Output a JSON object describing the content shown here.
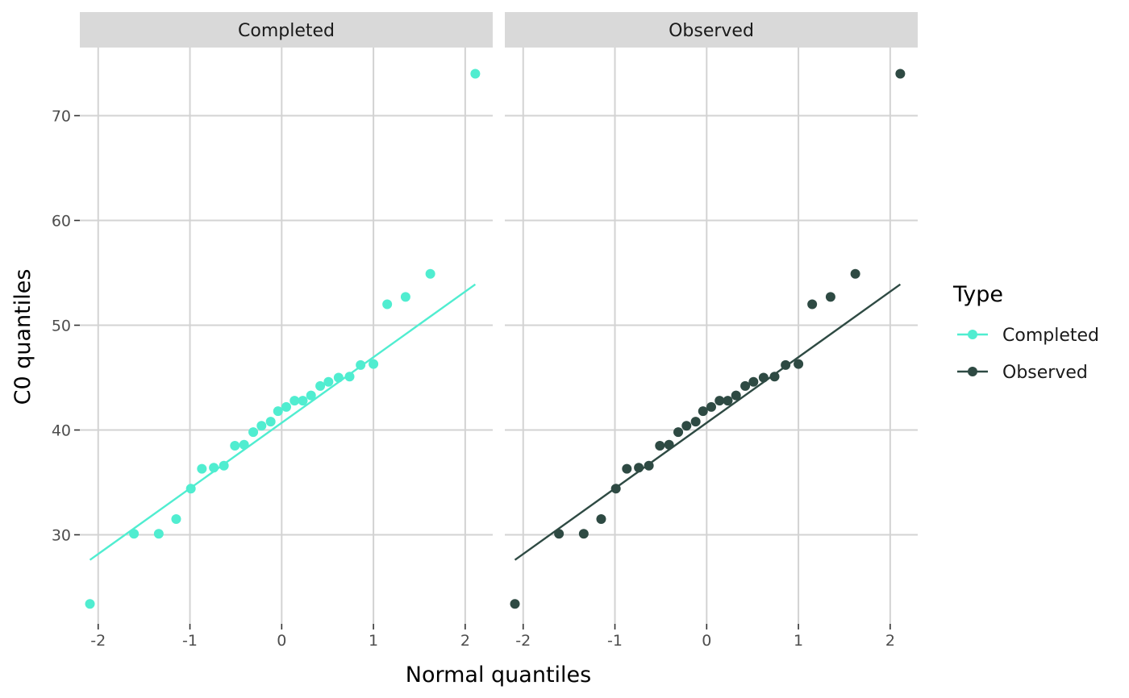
{
  "chart_data": {
    "type": "scatter",
    "subtype": "qq-plot",
    "facets": [
      "Completed",
      "Observed"
    ],
    "xlabel": "Normal quantiles",
    "ylabel": "C0 quantiles",
    "xlim": [
      -2.2,
      2.3
    ],
    "ylim": [
      21.5,
      76.5
    ],
    "x_ticks": [
      -2,
      -1,
      0,
      1,
      2
    ],
    "x_tick_labels": [
      "-2",
      "-1",
      "0",
      "1",
      "2"
    ],
    "y_ticks": [
      30,
      40,
      50,
      60,
      70
    ],
    "y_tick_labels": [
      "30",
      "40",
      "50",
      "60",
      "70"
    ],
    "grid": true,
    "legend": {
      "title": "Type",
      "position": "right",
      "items": [
        {
          "label": "Completed",
          "color": "#50EDD0"
        },
        {
          "label": "Observed",
          "color": "#2E4A43"
        }
      ]
    },
    "series": [
      {
        "name": "Completed",
        "color": "#50EDD0",
        "facet": "Completed",
        "points": [
          [
            -2.09,
            23.4
          ],
          [
            -1.61,
            30.1
          ],
          [
            -1.34,
            30.1
          ],
          [
            -1.15,
            31.5
          ],
          [
            -0.99,
            34.4
          ],
          [
            -0.87,
            36.3
          ],
          [
            -0.74,
            36.4
          ],
          [
            -0.63,
            36.6
          ],
          [
            -0.51,
            38.5
          ],
          [
            -0.41,
            38.6
          ],
          [
            -0.31,
            39.8
          ],
          [
            -0.22,
            40.4
          ],
          [
            -0.12,
            40.8
          ],
          [
            -0.04,
            41.8
          ],
          [
            0.05,
            42.2
          ],
          [
            0.14,
            42.8
          ],
          [
            0.23,
            42.8
          ],
          [
            0.32,
            43.3
          ],
          [
            0.42,
            44.2
          ],
          [
            0.51,
            44.6
          ],
          [
            0.62,
            45.0
          ],
          [
            0.74,
            45.1
          ],
          [
            0.86,
            46.2
          ],
          [
            1.0,
            46.3
          ],
          [
            1.15,
            52.0
          ],
          [
            1.35,
            52.7
          ],
          [
            1.62,
            54.9
          ],
          [
            2.11,
            74.0
          ]
        ],
        "reference_line": [
          [
            -2.09,
            27.6
          ],
          [
            2.11,
            53.9
          ]
        ]
      },
      {
        "name": "Observed",
        "color": "#2E4A43",
        "facet": "Observed",
        "points": [
          [
            -2.09,
            23.4
          ],
          [
            -1.61,
            30.1
          ],
          [
            -1.34,
            30.1
          ],
          [
            -1.15,
            31.5
          ],
          [
            -0.99,
            34.4
          ],
          [
            -0.87,
            36.3
          ],
          [
            -0.74,
            36.4
          ],
          [
            -0.63,
            36.6
          ],
          [
            -0.51,
            38.5
          ],
          [
            -0.41,
            38.6
          ],
          [
            -0.31,
            39.8
          ],
          [
            -0.22,
            40.4
          ],
          [
            -0.12,
            40.8
          ],
          [
            -0.04,
            41.8
          ],
          [
            0.05,
            42.2
          ],
          [
            0.14,
            42.8
          ],
          [
            0.23,
            42.8
          ],
          [
            0.32,
            43.3
          ],
          [
            0.42,
            44.2
          ],
          [
            0.51,
            44.6
          ],
          [
            0.62,
            45.0
          ],
          [
            0.74,
            45.1
          ],
          [
            0.86,
            46.2
          ],
          [
            1.0,
            46.3
          ],
          [
            1.15,
            52.0
          ],
          [
            1.35,
            52.7
          ],
          [
            1.62,
            54.9
          ],
          [
            2.11,
            74.0
          ]
        ],
        "reference_line": [
          [
            -2.09,
            27.6
          ],
          [
            2.11,
            53.9
          ]
        ]
      }
    ]
  }
}
